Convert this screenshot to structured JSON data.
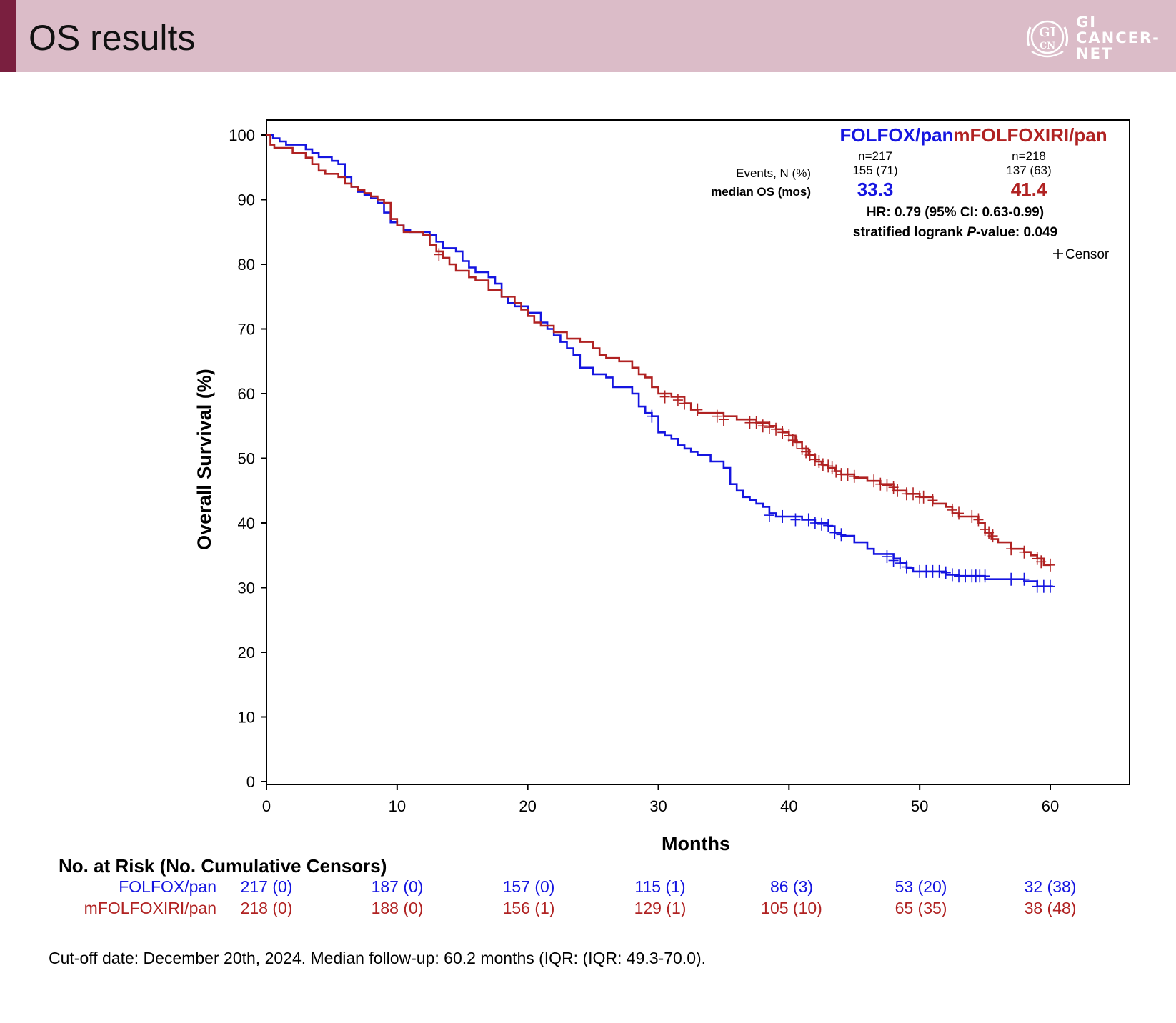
{
  "header": {
    "title": "OS results"
  },
  "logo": {
    "mark_top": "GI",
    "mark_bottom": "CN",
    "words": [
      "GI",
      "CANCER-",
      "NET"
    ]
  },
  "colors": {
    "folfox": "#1515e0",
    "mfolfoxiri": "#b02222",
    "header_bg": "#dbbcc8",
    "header_accent": "#7a1f3f"
  },
  "chart_data": {
    "type": "line",
    "subtype": "kaplan-meier",
    "xlabel": "Months",
    "ylabel": "Overall Survival (%)",
    "xlim": [
      0,
      66
    ],
    "ylim": [
      0,
      100
    ],
    "xticks": [
      0,
      10,
      20,
      30,
      40,
      50,
      60
    ],
    "yticks": [
      0,
      10,
      20,
      30,
      40,
      50,
      60,
      70,
      80,
      90,
      100
    ],
    "legend": {
      "folfox_name": "FOLFOX/pan",
      "mfolfoxiri_name": "mFOLFOXIRI/pan",
      "folfox_n": "n=217",
      "mfolfoxiri_n": "n=218",
      "events_label": "Events, N (%)",
      "folfox_events": "155 (71)",
      "mfolfoxiri_events": "137 (63)",
      "median_label": "median OS (mos)",
      "folfox_median": "33.3",
      "mfolfoxiri_median": "41.4",
      "hr_text": "HR: 0.79 (95% CI: 0.63-0.99)",
      "logrank_pre": "stratified logrank ",
      "logrank_p": "P",
      "logrank_post": "-value: 0.049",
      "censor_label": "Censor"
    },
    "series": [
      {
        "name": "FOLFOX/pan",
        "points": [
          [
            0,
            100
          ],
          [
            0.5,
            99.5
          ],
          [
            1,
            99
          ],
          [
            1.5,
            98.5
          ],
          [
            3,
            97.8
          ],
          [
            3.5,
            97.2
          ],
          [
            4,
            96.6
          ],
          [
            5,
            96
          ],
          [
            5.5,
            95.5
          ],
          [
            6,
            93.5
          ],
          [
            6.5,
            92
          ],
          [
            7,
            91.2
          ],
          [
            7.5,
            90.7
          ],
          [
            8,
            90.2
          ],
          [
            8.5,
            89.5
          ],
          [
            9,
            88
          ],
          [
            9.5,
            86.5
          ],
          [
            10,
            86
          ],
          [
            10.5,
            85.3
          ],
          [
            11,
            85
          ],
          [
            12.5,
            84.5
          ],
          [
            13,
            83.5
          ],
          [
            13.5,
            82.5
          ],
          [
            14.5,
            82
          ],
          [
            15,
            80.5
          ],
          [
            15.5,
            79.5
          ],
          [
            16,
            78.8
          ],
          [
            17,
            78
          ],
          [
            17.5,
            77
          ],
          [
            18,
            75
          ],
          [
            18.5,
            74
          ],
          [
            19,
            73.5
          ],
          [
            20,
            72.5
          ],
          [
            21,
            71
          ],
          [
            21.5,
            70
          ],
          [
            22,
            69
          ],
          [
            22.5,
            68
          ],
          [
            23,
            67
          ],
          [
            23.5,
            66
          ],
          [
            24,
            64
          ],
          [
            25,
            63
          ],
          [
            26,
            62.5
          ],
          [
            26.5,
            61
          ],
          [
            28,
            60
          ],
          [
            28.5,
            58
          ],
          [
            29,
            57
          ],
          [
            29.5,
            56.5
          ],
          [
            30,
            54
          ],
          [
            30.5,
            53.5
          ],
          [
            31,
            53
          ],
          [
            31.5,
            52
          ],
          [
            32,
            51.5
          ],
          [
            32.5,
            51
          ],
          [
            33,
            50.5
          ],
          [
            34,
            49.5
          ],
          [
            35,
            48.5
          ],
          [
            35.5,
            46
          ],
          [
            36,
            45
          ],
          [
            36.5,
            44
          ],
          [
            37,
            43.5
          ],
          [
            37.5,
            43
          ],
          [
            38,
            42.5
          ],
          [
            38.5,
            41.5
          ],
          [
            39,
            41
          ],
          [
            41,
            40.5
          ],
          [
            42,
            40
          ],
          [
            43,
            39.5
          ],
          [
            43.5,
            38.5
          ],
          [
            44,
            38
          ],
          [
            45,
            37
          ],
          [
            46,
            36
          ],
          [
            46.5,
            35.2
          ],
          [
            48,
            34.5
          ],
          [
            48.5,
            33.8
          ],
          [
            49,
            33
          ],
          [
            49.5,
            32.5
          ],
          [
            52,
            32
          ],
          [
            53,
            31.8
          ],
          [
            55,
            31.3
          ],
          [
            58,
            31
          ],
          [
            59,
            30.2
          ],
          [
            60.2,
            30.2
          ]
        ],
        "censors": [
          [
            29.5,
            56.5
          ],
          [
            38.5,
            41.2
          ],
          [
            39.5,
            41
          ],
          [
            40.5,
            40.5
          ],
          [
            41.5,
            40.5
          ],
          [
            42,
            40
          ],
          [
            42.5,
            39.8
          ],
          [
            43,
            39.6
          ],
          [
            43.5,
            38.5
          ],
          [
            44,
            38.2
          ],
          [
            47.5,
            34.8
          ],
          [
            48,
            34.2
          ],
          [
            48.5,
            33.8
          ],
          [
            49,
            33.2
          ],
          [
            50,
            32.5
          ],
          [
            50.5,
            32.5
          ],
          [
            51,
            32.5
          ],
          [
            51.5,
            32.5
          ],
          [
            52,
            32.3
          ],
          [
            52.5,
            32
          ],
          [
            53,
            31.8
          ],
          [
            53.5,
            31.8
          ],
          [
            54,
            31.8
          ],
          [
            54.3,
            31.8
          ],
          [
            54.6,
            31.8
          ],
          [
            55,
            31.8
          ],
          [
            57,
            31.3
          ],
          [
            58,
            31.3
          ],
          [
            59,
            30.2
          ],
          [
            59.5,
            30.2
          ],
          [
            60,
            30.2
          ]
        ]
      },
      {
        "name": "mFOLFOXIRI/pan",
        "points": [
          [
            0,
            100
          ],
          [
            0.3,
            98.5
          ],
          [
            0.6,
            98
          ],
          [
            2,
            97.2
          ],
          [
            3,
            96.5
          ],
          [
            3.5,
            95.5
          ],
          [
            4,
            94.5
          ],
          [
            4.5,
            94
          ],
          [
            5.5,
            93.5
          ],
          [
            6,
            92.5
          ],
          [
            6.5,
            92
          ],
          [
            7,
            91.5
          ],
          [
            7.5,
            91
          ],
          [
            8,
            90.5
          ],
          [
            8.5,
            90
          ],
          [
            9,
            89.5
          ],
          [
            9.5,
            87
          ],
          [
            10,
            86
          ],
          [
            10.5,
            85
          ],
          [
            12,
            84.5
          ],
          [
            12.5,
            83
          ],
          [
            13,
            82
          ],
          [
            13.5,
            81
          ],
          [
            14,
            80
          ],
          [
            14.5,
            79
          ],
          [
            15.5,
            78
          ],
          [
            16,
            77.5
          ],
          [
            17,
            76
          ],
          [
            18,
            75
          ],
          [
            19,
            74
          ],
          [
            19.5,
            73
          ],
          [
            20,
            72
          ],
          [
            20.5,
            71
          ],
          [
            21,
            70.5
          ],
          [
            22,
            69.5
          ],
          [
            23,
            68.5
          ],
          [
            24,
            68
          ],
          [
            25,
            67
          ],
          [
            25.5,
            66
          ],
          [
            26,
            65.5
          ],
          [
            27,
            65
          ],
          [
            28,
            64
          ],
          [
            28.5,
            63
          ],
          [
            29,
            62.5
          ],
          [
            29.5,
            61
          ],
          [
            30,
            60
          ],
          [
            31,
            59.5
          ],
          [
            32,
            58.5
          ],
          [
            32.5,
            57.5
          ],
          [
            33,
            57
          ],
          [
            34,
            57
          ],
          [
            35,
            56.5
          ],
          [
            36,
            56
          ],
          [
            37.5,
            55.5
          ],
          [
            38.5,
            55
          ],
          [
            39,
            54.5
          ],
          [
            39.5,
            54
          ],
          [
            40,
            53.5
          ],
          [
            40.5,
            52.5
          ],
          [
            41,
            51.5
          ],
          [
            41.5,
            50.5
          ],
          [
            42,
            49.5
          ],
          [
            42.5,
            49
          ],
          [
            43,
            48.5
          ],
          [
            43.5,
            48
          ],
          [
            44,
            47.5
          ],
          [
            45,
            47
          ],
          [
            46,
            46.5
          ],
          [
            47,
            46
          ],
          [
            48,
            45
          ],
          [
            49,
            44.5
          ],
          [
            50,
            44
          ],
          [
            51,
            43
          ],
          [
            52,
            42.5
          ],
          [
            52.5,
            41.5
          ],
          [
            53,
            41
          ],
          [
            54,
            41
          ],
          [
            54.5,
            40
          ],
          [
            55,
            38.5
          ],
          [
            55.5,
            37.5
          ],
          [
            56,
            37
          ],
          [
            57,
            36
          ],
          [
            58,
            35.5
          ],
          [
            58.5,
            35
          ],
          [
            59,
            34.5
          ],
          [
            59.5,
            33.5
          ],
          [
            60,
            33.5
          ]
        ],
        "censors": [
          [
            13.2,
            81.5
          ],
          [
            30.5,
            59.5
          ],
          [
            31.5,
            59
          ],
          [
            32,
            58.5
          ],
          [
            33,
            57.5
          ],
          [
            34.5,
            56.5
          ],
          [
            35,
            56
          ],
          [
            37,
            55.5
          ],
          [
            37.5,
            55.5
          ],
          [
            38,
            55
          ],
          [
            38.5,
            54.8
          ],
          [
            39,
            54.5
          ],
          [
            39.5,
            54
          ],
          [
            40,
            53.5
          ],
          [
            40.3,
            52.8
          ],
          [
            40.6,
            52.5
          ],
          [
            41,
            51.5
          ],
          [
            41.3,
            51
          ],
          [
            41.6,
            50.5
          ],
          [
            42,
            49.8
          ],
          [
            42.3,
            49.5
          ],
          [
            42.6,
            49
          ],
          [
            43,
            48.8
          ],
          [
            43.3,
            48.5
          ],
          [
            43.6,
            48
          ],
          [
            44,
            47.5
          ],
          [
            44.5,
            47.5
          ],
          [
            45,
            47.2
          ],
          [
            46.5,
            46.5
          ],
          [
            47,
            46
          ],
          [
            47.5,
            45.8
          ],
          [
            48,
            45.5
          ],
          [
            48.3,
            45
          ],
          [
            49,
            44.5
          ],
          [
            49.5,
            44.5
          ],
          [
            50,
            44
          ],
          [
            50.3,
            44
          ],
          [
            51,
            43.5
          ],
          [
            52.5,
            42
          ],
          [
            53,
            41.5
          ],
          [
            54,
            41
          ],
          [
            54.5,
            40.5
          ],
          [
            55,
            39
          ],
          [
            55.3,
            38.5
          ],
          [
            55.6,
            38
          ],
          [
            57,
            36
          ],
          [
            58,
            35.5
          ],
          [
            59,
            34.5
          ],
          [
            59.3,
            34
          ],
          [
            60,
            33.5
          ]
        ]
      }
    ],
    "risk_table": {
      "title": "No. at Risk (No. Cumulative Censors)",
      "rows": [
        {
          "label": "FOLFOX/pan",
          "values": [
            "217 (0)",
            "187 (0)",
            "157 (0)",
            "115 (1)",
            "86 (3)",
            "53 (20)",
            "32 (38)"
          ]
        },
        {
          "label": "mFOLFOXIRI/pan",
          "values": [
            "218 (0)",
            "188 (0)",
            "156 (1)",
            "129 (1)",
            "105 (10)",
            "65 (35)",
            "38 (48)"
          ]
        }
      ]
    }
  },
  "footnote": "Cut-off date: December 20th, 2024. Median follow-up: 60.2 months (IQR: (IQR: 49.3-70.0)."
}
